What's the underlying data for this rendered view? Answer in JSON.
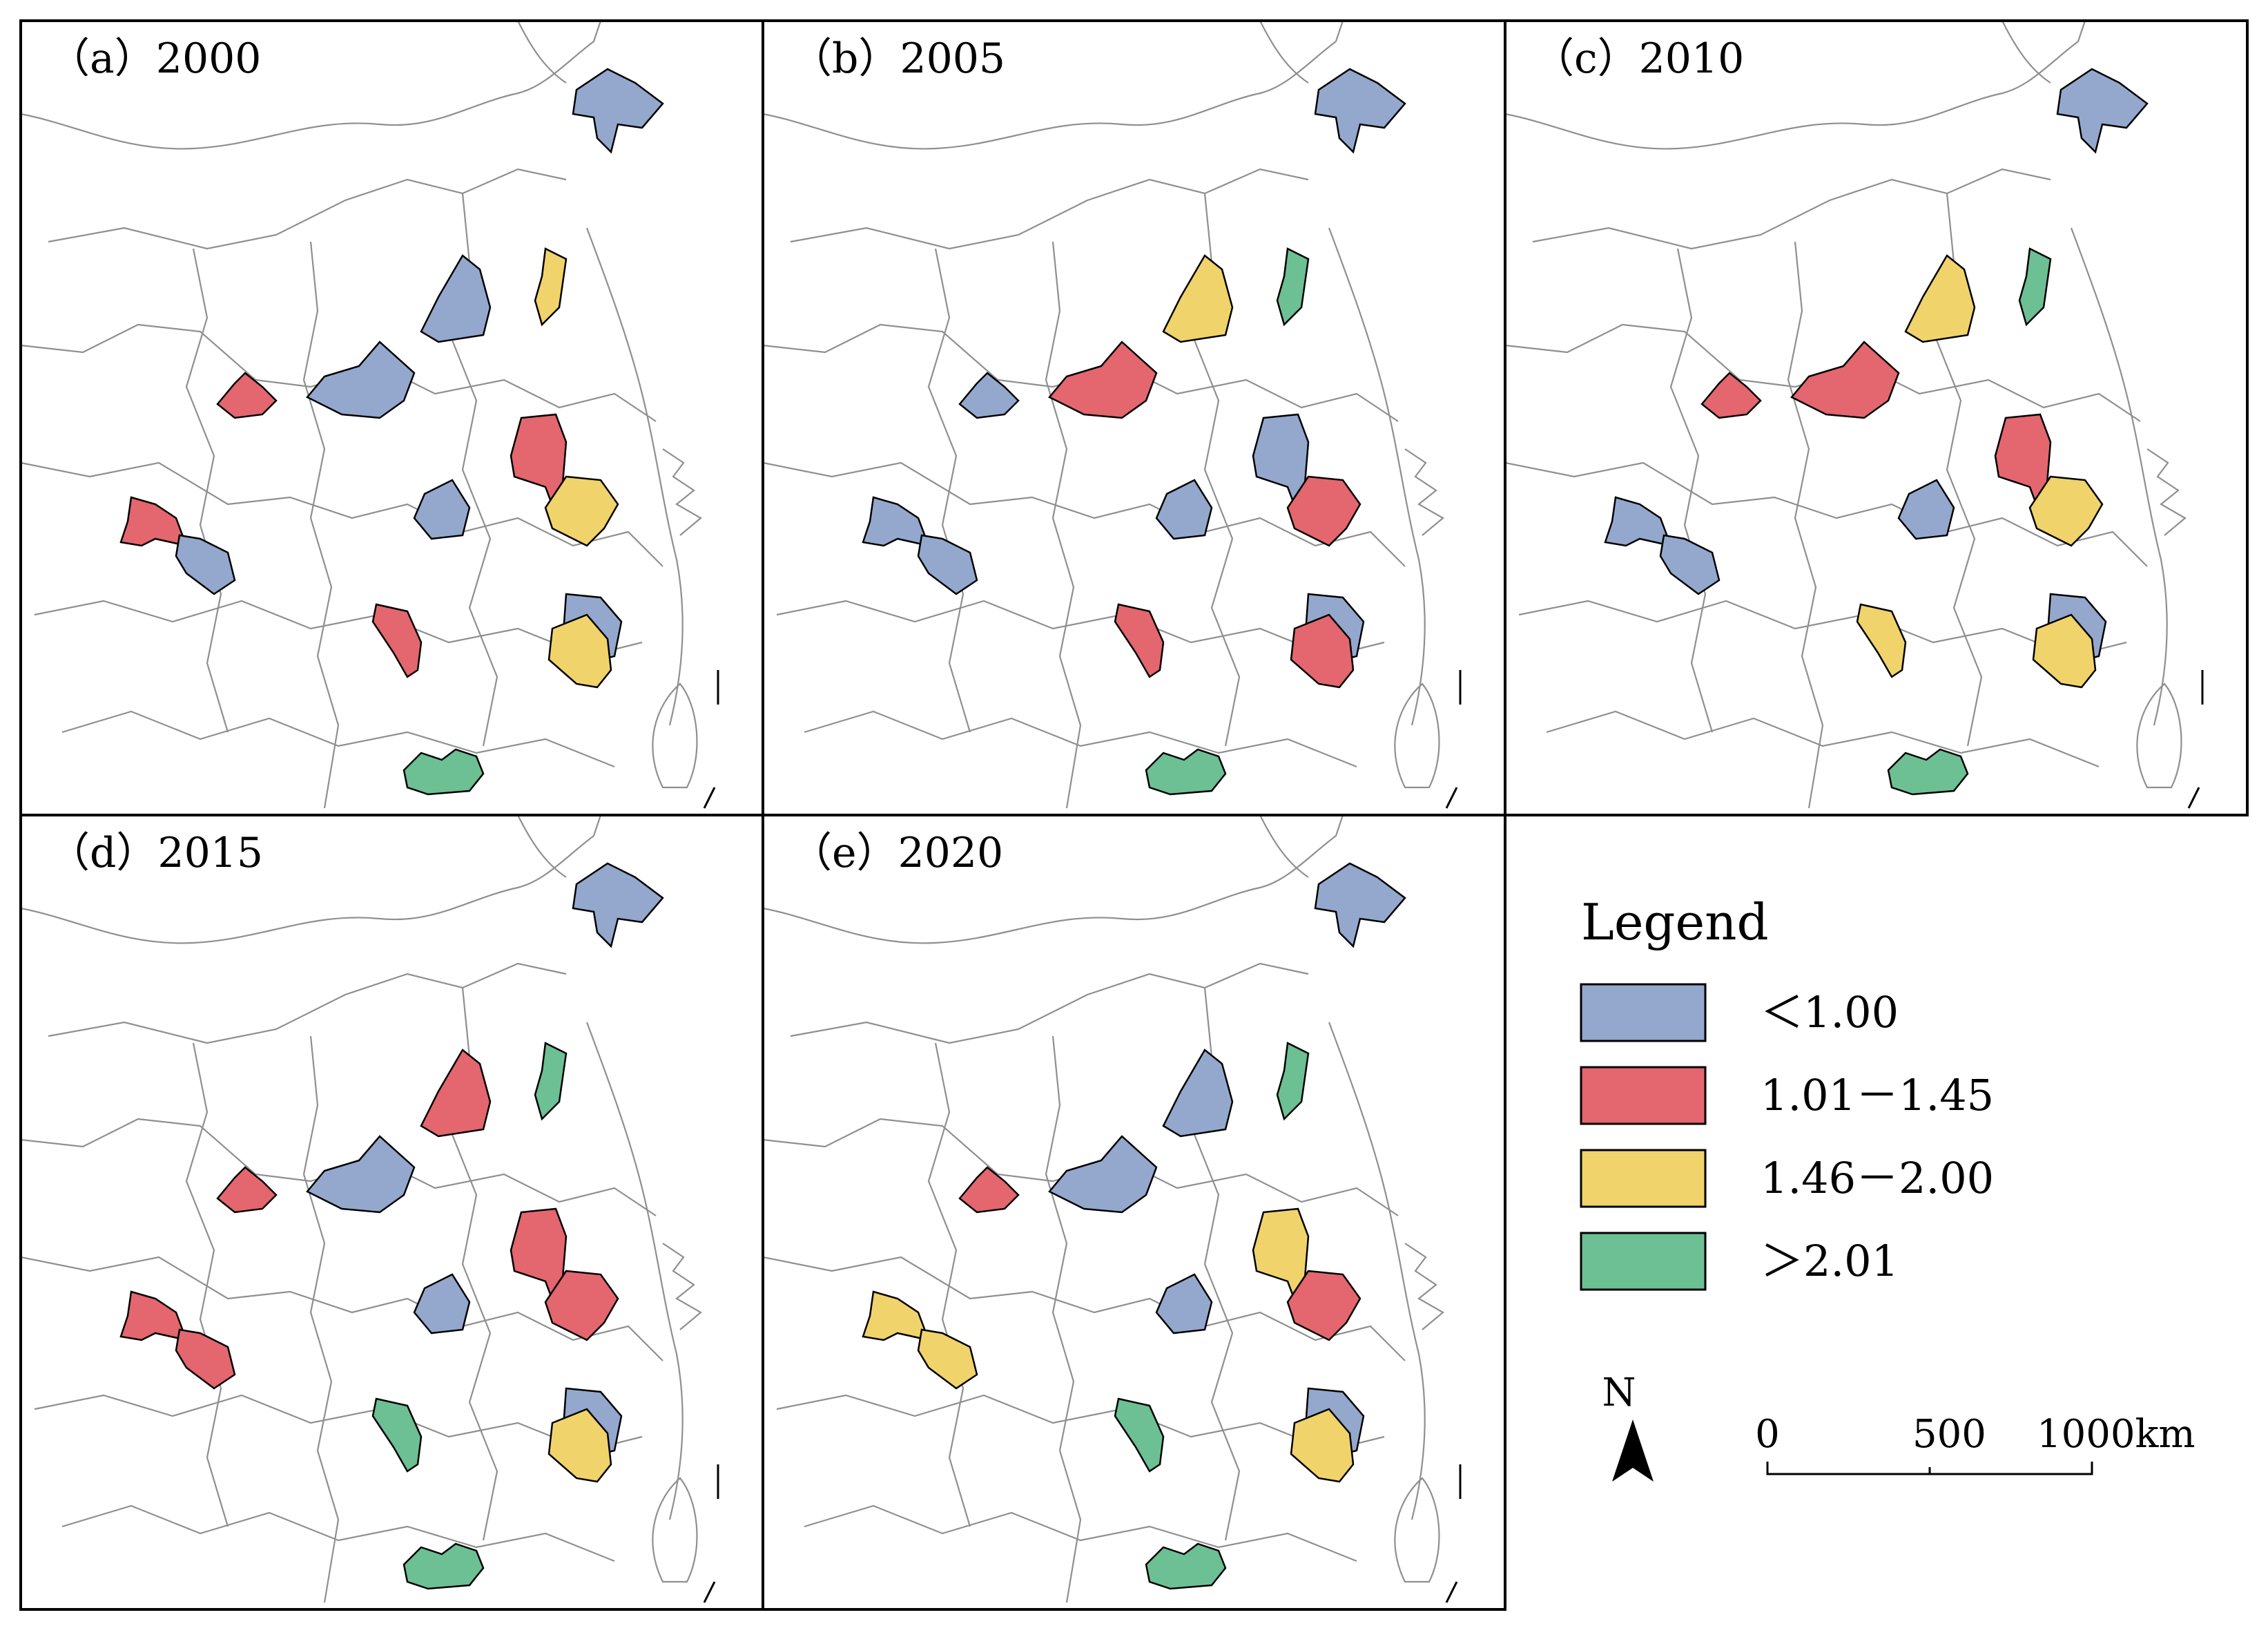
{
  "colors": {
    "class_1": "#94a8cd",
    "class_2": "#e4666e",
    "class_3": "#f0d36b",
    "class_4": "#6cc093",
    "frame": "#000000",
    "boundary": "#8f8f8f"
  },
  "panels": [
    {
      "title": "（a）2000",
      "values": [
        "class_1",
        "class_3",
        "class_1",
        "class_2",
        "class_1",
        "class_2",
        "class_1",
        "class_3",
        "class_2",
        "class_1",
        "class_1",
        "class_2",
        "class_3",
        "class_4"
      ]
    },
    {
      "title": "（b）2005",
      "values": [
        "class_1",
        "class_4",
        "class_3",
        "class_1",
        "class_2",
        "class_1",
        "class_1",
        "class_2",
        "class_1",
        "class_1",
        "class_1",
        "class_2",
        "class_2",
        "class_4"
      ]
    },
    {
      "title": "（c）2010",
      "values": [
        "class_1",
        "class_4",
        "class_3",
        "class_2",
        "class_2",
        "class_2",
        "class_1",
        "class_3",
        "class_1",
        "class_1",
        "class_1",
        "class_3",
        "class_3",
        "class_4"
      ]
    },
    {
      "title": "（d）2015",
      "values": [
        "class_1",
        "class_4",
        "class_2",
        "class_2",
        "class_1",
        "class_2",
        "class_1",
        "class_2",
        "class_2",
        "class_2",
        "class_1",
        "class_4",
        "class_3",
        "class_4"
      ]
    },
    {
      "title": "（e）2020",
      "values": [
        "class_1",
        "class_4",
        "class_1",
        "class_2",
        "class_1",
        "class_3",
        "class_1",
        "class_2",
        "class_3",
        "class_3",
        "class_1",
        "class_4",
        "class_3",
        "class_4"
      ]
    }
  ],
  "legend": {
    "title": "Legend",
    "items": [
      {
        "key": "class_1",
        "label": "＜1.00"
      },
      {
        "key": "class_2",
        "label": "1.01－1.45"
      },
      {
        "key": "class_3",
        "label": "1.46－2.00"
      },
      {
        "key": "class_4",
        "label": "＞2.01"
      }
    ]
  },
  "north_arrow": {
    "label": "N"
  },
  "scale_bar": {
    "labels": [
      "0",
      "500",
      "1000km"
    ]
  }
}
